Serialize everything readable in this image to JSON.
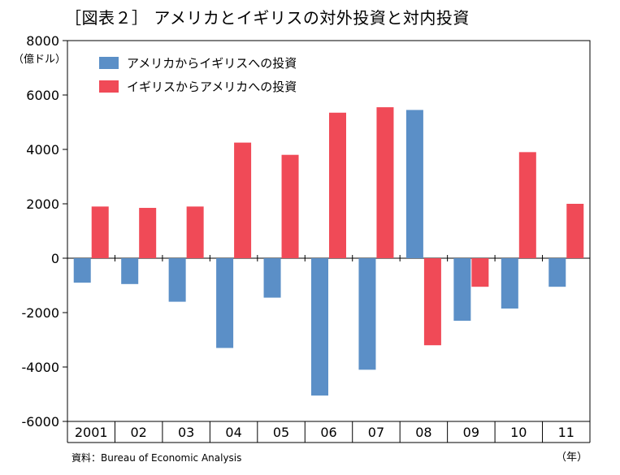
{
  "title": "［図表２］ アメリカとイギリスの対外投資と対内投資",
  "unit_label": "（億ドル）",
  "source": "資料：Bureau of Economic Analysis",
  "x_unit_label": "（年）",
  "colors": {
    "series_us_to_uk": "#5b8fc7",
    "series_uk_to_us": "#f04a57"
  },
  "chart_data": {
    "type": "bar",
    "categories": [
      "2001",
      "02",
      "03",
      "04",
      "05",
      "06",
      "07",
      "08",
      "09",
      "10",
      "11"
    ],
    "series": [
      {
        "name": "アメリカからイギリスへの投資",
        "values": [
          -900,
          -950,
          -1600,
          -3300,
          -1450,
          -5050,
          -4100,
          5450,
          -2300,
          -1850,
          -1050
        ]
      },
      {
        "name": "イギリスからアメリカへの投資",
        "values": [
          1900,
          1850,
          1900,
          4250,
          3800,
          5350,
          5550,
          -3200,
          -1050,
          3900,
          2000
        ]
      }
    ],
    "ylim": [
      -6000,
      8000
    ],
    "yticks": [
      8000,
      6000,
      4000,
      2000,
      0,
      -2000,
      -4000,
      -6000
    ],
    "ytick_labels": [
      "8000",
      "6000",
      "4000",
      "2000",
      "0",
      "-2000",
      "-4000",
      "-6000"
    ],
    "xlabel": "",
    "ylabel": "（億ドル）",
    "grid": false,
    "legend": "top-left"
  }
}
